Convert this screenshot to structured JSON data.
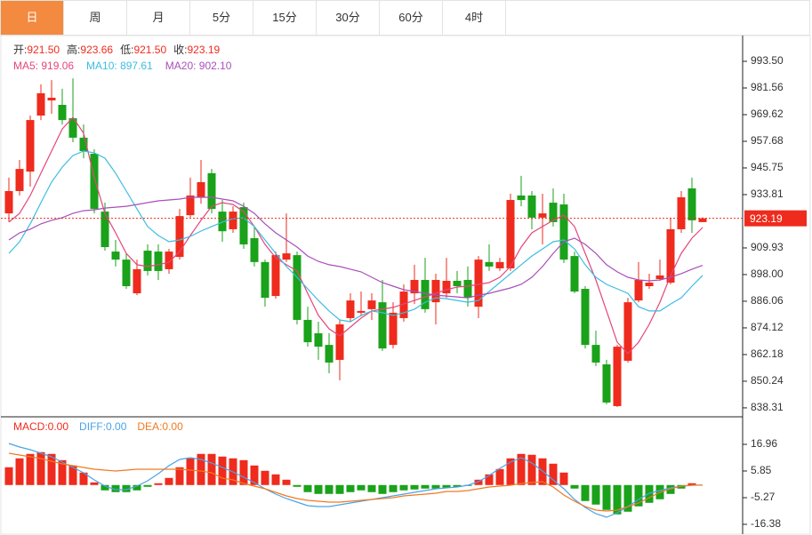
{
  "tabs": [
    "日",
    "周",
    "月",
    "5分",
    "15分",
    "30分",
    "60分",
    "4时"
  ],
  "active_tab": 0,
  "chart_data": [
    {
      "type": "candlestick",
      "categories": [
        null,
        null,
        null,
        null,
        null,
        null,
        null,
        null,
        null,
        null,
        null,
        null,
        null,
        null,
        null,
        null,
        null,
        null,
        null,
        null,
        null,
        null,
        null,
        null,
        null,
        null,
        null,
        null,
        null,
        null,
        null,
        null,
        null,
        null,
        null,
        null,
        null,
        null,
        null,
        null,
        null,
        null,
        null,
        null,
        null,
        null,
        null,
        null,
        null,
        null,
        null,
        null,
        null,
        null,
        null,
        null,
        null,
        null,
        null,
        null,
        null,
        null,
        null,
        null,
        null,
        null
      ],
      "info": [
        {
          "label": "开:",
          "text": "921.50"
        },
        {
          "label": "高:",
          "text": "923.66"
        },
        {
          "label": "低:",
          "text": "921.50"
        },
        {
          "label": "收:",
          "text": "923.19"
        }
      ],
      "up_color": "#ee2b1d",
      "down_color": "#1aa21a",
      "open": [
        925.4,
        935.4,
        944.1,
        969.2,
        976.0,
        974.0,
        968.0,
        959.3,
        952.1,
        926.2,
        908.3,
        904.7,
        889.6,
        908.7,
        908.3,
        900.4,
        905.9,
        924.6,
        932.6,
        943.4,
        926.2,
        918.3,
        928.2,
        914.3,
        903.6,
        888.4,
        904.7,
        906.7,
        877.7,
        871.7,
        866.5,
        859.8,
        878.5,
        880.9,
        882.5,
        885.6,
        866.5,
        878.5,
        889.6,
        895.6,
        885.6,
        889.6,
        895.2,
        895.6,
        883.6,
        903.6,
        900.8,
        900.8,
        933.4,
        933.4,
        923.5,
        930.2,
        929.4,
        906.3,
        891.6,
        866.5,
        857.8,
        839.1,
        859.4,
        886.4,
        892.8,
        896.0,
        894.4,
        918.3,
        936.6,
        921.5
      ],
      "high": [
        941.4,
        949.3,
        969.2,
        983.2,
        985.1,
        981.2,
        985.9,
        965.2,
        954.1,
        930.2,
        913.5,
        907.5,
        904.7,
        911.5,
        911.5,
        909.5,
        927.4,
        941.4,
        949.3,
        945.3,
        931.4,
        928.6,
        930.2,
        919.5,
        904.7,
        908.3,
        925.4,
        908.3,
        883.6,
        876.9,
        871.7,
        877.7,
        889.6,
        890.4,
        889.6,
        895.6,
        885.6,
        893.6,
        902.4,
        905.5,
        898.4,
        905.5,
        899.6,
        901.6,
        906.3,
        911.5,
        905.5,
        934.2,
        942.2,
        935.4,
        934.2,
        936.6,
        934.2,
        908.3,
        892.8,
        872.9,
        859.8,
        866.5,
        887.6,
        903.6,
        898.4,
        904.7,
        923.5,
        935.4,
        941.4,
        923.66
      ],
      "low": [
        921.5,
        933.4,
        937.4,
        967.2,
        970.0,
        965.2,
        957.3,
        950.1,
        925.4,
        908.7,
        901.6,
        891.6,
        888.8,
        897.6,
        895.6,
        898.4,
        904.7,
        923.5,
        929.7,
        925.4,
        912.7,
        916.7,
        909.5,
        901.6,
        883.6,
        887.2,
        903.6,
        875.7,
        865.7,
        859.8,
        853.8,
        850.6,
        876.9,
        879.3,
        877.7,
        863.8,
        864.9,
        876.9,
        884.8,
        880.9,
        875.7,
        887.6,
        889.6,
        883.6,
        878.5,
        899.6,
        899.6,
        899.6,
        928.6,
        918.3,
        911.5,
        919.5,
        903.2,
        889.6,
        864.9,
        857.0,
        839.9,
        838.7,
        858.6,
        885.6,
        891.6,
        895.2,
        893.6,
        916.7,
        916.7,
        921.5
      ],
      "close": [
        935.4,
        945.3,
        967.2,
        979.2,
        977.2,
        967.2,
        959.3,
        953.3,
        927.4,
        910.3,
        904.7,
        892.8,
        900.4,
        899.6,
        899.6,
        908.3,
        924.2,
        933.4,
        939.4,
        927.4,
        917.4,
        926.2,
        911.5,
        903.6,
        887.6,
        906.7,
        907.5,
        877.7,
        867.7,
        865.7,
        858.6,
        875.7,
        886.4,
        881.7,
        886.4,
        864.9,
        880.9,
        890.4,
        895.6,
        882.5,
        895.6,
        895.2,
        892.8,
        887.6,
        904.7,
        901.6,
        903.6,
        931.4,
        931.4,
        923.5,
        925.4,
        921.5,
        904.7,
        890.4,
        866.5,
        858.6,
        840.7,
        865.7,
        885.6,
        895.6,
        894.4,
        897.6,
        918.3,
        932.6,
        922.3,
        923.19
      ],
      "series": [
        {
          "name": "MA5: 919.06",
          "color": "#e5457a",
          "values": [
            921.5,
            925.4,
            933.4,
            943.4,
            953.3,
            963.2,
            968.4,
            961.3,
            941.4,
            925.4,
            916.7,
            907.5,
            902.4,
            901.6,
            902.4,
            903.6,
            908.3,
            915.5,
            922.3,
            928.6,
            930.2,
            929.4,
            926.2,
            919.5,
            911.5,
            905.5,
            902.4,
            899.6,
            889.6,
            879.7,
            873.7,
            870.5,
            874.5,
            878.5,
            881.7,
            882.5,
            883.3,
            884.8,
            886.4,
            888.0,
            889.6,
            891.2,
            892.4,
            892.8,
            893.6,
            894.4,
            896.8,
            901.6,
            910.3,
            916.7,
            919.5,
            922.3,
            924.6,
            919.5,
            907.5,
            895.6,
            881.7,
            867.7,
            862.6,
            867.7,
            875.7,
            885.6,
            897.6,
            907.5,
            914.3,
            919.06
          ]
        },
        {
          "name": "MA10: 897.61",
          "color": "#3cbde0",
          "values": [
            907.5,
            912.7,
            920.7,
            930.2,
            939.4,
            946.1,
            951.3,
            953.3,
            952.5,
            950.1,
            943.4,
            935.4,
            927.4,
            919.5,
            915.5,
            912.7,
            913.5,
            915.1,
            917.5,
            919.5,
            921.5,
            923.0,
            923.4,
            919.5,
            913.5,
            907.5,
            901.6,
            896.8,
            891.6,
            886.4,
            881.7,
            877.7,
            876.9,
            879.7,
            881.7,
            880.9,
            879.7,
            880.9,
            882.5,
            885.6,
            887.6,
            887.2,
            886.4,
            885.6,
            886.4,
            890.4,
            894.4,
            898.4,
            902.4,
            906.3,
            909.5,
            912.7,
            913.5,
            909.5,
            902.4,
            896.8,
            893.6,
            891.6,
            889.6,
            883.6,
            881.7,
            881.7,
            884.8,
            887.6,
            892.8,
            897.61
          ]
        },
        {
          "name": "MA20: 902.10",
          "color": "#a94fba",
          "values": [
            913.5,
            916.7,
            918.3,
            920.7,
            922.3,
            923.5,
            925.4,
            926.6,
            927.0,
            927.8,
            928.2,
            928.6,
            929.4,
            930.2,
            931.0,
            931.4,
            931.8,
            932.6,
            932.6,
            932.6,
            931.8,
            931.0,
            928.6,
            925.4,
            920.7,
            916.7,
            913.5,
            910.3,
            906.3,
            903.9,
            902.4,
            901.6,
            900.4,
            899.2,
            896.8,
            894.4,
            892.8,
            891.2,
            890.4,
            889.6,
            888.8,
            888.4,
            888.0,
            887.6,
            888.8,
            889.6,
            890.8,
            892.0,
            893.6,
            896.8,
            901.6,
            907.5,
            912.7,
            914.3,
            911.5,
            907.5,
            902.4,
            899.2,
            896.8,
            895.6,
            895.2,
            895.6,
            896.8,
            898.4,
            900.4,
            902.1
          ]
        }
      ],
      "ylim": [
        834.7,
        1005.04
      ],
      "yticks": [
        {
          "value": 993.5,
          "label": "993.50"
        },
        981.56,
        969.62,
        957.68,
        945.75,
        933.81,
        909.93,
        {
          "value": 898,
          "label": "898.00"
        },
        886.06,
        874.12,
        862.18,
        850.24,
        838.31
      ],
      "last_price": {
        "value": 923.19,
        "label": "923.19"
      }
    },
    {
      "type": "macd",
      "histogram": {
        "name": "MACD:0.00",
        "color": "#ee2b1d",
        "down_color": "#1aa21a",
        "values": [
          7.41,
          11.12,
          12.97,
          13.71,
          12.97,
          10.37,
          8.15,
          5.19,
          1.11,
          -2.22,
          -2.96,
          -2.96,
          -2.22,
          -0.74,
          0.74,
          2.96,
          7.41,
          11.12,
          12.97,
          12.97,
          11.86,
          11.12,
          10.37,
          8.15,
          5.93,
          4.45,
          2.22,
          -0.74,
          -2.96,
          -3.71,
          -3.71,
          -3.71,
          -2.96,
          -2.22,
          -2.96,
          -3.71,
          -2.96,
          -2.22,
          -1.85,
          -1.48,
          -1.48,
          -1.11,
          -0.74,
          -0.37,
          2.22,
          4.45,
          6.67,
          11.12,
          12.97,
          12.6,
          11.12,
          8.89,
          5.19,
          -1.48,
          -6.67,
          -8.15,
          -10.37,
          -12.23,
          -11.12,
          -8.89,
          -7.41,
          -5.93,
          -3.71,
          -1.48,
          0.74,
          0
        ]
      },
      "series": [
        {
          "name": "DIFF:0.00",
          "color": "#4aa3e8",
          "values": [
            17.34,
            15.86,
            14.75,
            13.26,
            11.78,
            9.56,
            7.34,
            5.11,
            2.15,
            -0.44,
            -1.93,
            -1.93,
            -0.44,
            1.78,
            4.74,
            8.08,
            10.67,
            11.41,
            10.67,
            9.19,
            7.34,
            5.48,
            3.26,
            1.04,
            -1.56,
            -3.78,
            -5.63,
            -7.11,
            -8.59,
            -8.97,
            -8.97,
            -8.23,
            -7.48,
            -6.74,
            -6.0,
            -5.26,
            -4.52,
            -3.78,
            -3.04,
            -2.3,
            -1.56,
            -1.19,
            -0.82,
            -0.07,
            1.41,
            4.0,
            6.97,
            9.56,
            11.41,
            9.19,
            5.85,
            2.15,
            -1.56,
            -6.0,
            -9.34,
            -11.93,
            -13.41,
            -11.56,
            -8.97,
            -6.0,
            -3.41,
            -2.3,
            -1.19,
            -0.44,
            -0.07,
            0
          ]
        },
        {
          "name": "DEA:0.00",
          "color": "#f07a20",
          "values": [
            13.26,
            12.52,
            11.78,
            11.04,
            9.93,
            8.82,
            8.08,
            7.34,
            6.6,
            6.22,
            5.85,
            6.22,
            6.6,
            6.6,
            6.6,
            6.6,
            6.6,
            6.22,
            5.85,
            5.11,
            2.89,
            2.15,
            0.67,
            -0.44,
            -1.56,
            -3.04,
            -4.52,
            -5.63,
            -6.37,
            -6.74,
            -7.11,
            -7.11,
            -6.74,
            -6.37,
            -6.0,
            -5.63,
            -5.26,
            -4.52,
            -4.15,
            -3.78,
            -3.41,
            -2.67,
            -2.67,
            -2.3,
            -1.56,
            -0.82,
            -0.44,
            -0.07,
            0.67,
            1.04,
            1.41,
            -0.82,
            -4.15,
            -6.74,
            -8.97,
            -10.45,
            -10.82,
            -10.45,
            -8.97,
            -7.48,
            -5.26,
            -3.04,
            -1.56,
            -0.44,
            -0.07,
            0
          ]
        }
      ],
      "ylim": [
        -20.09,
        28.07
      ],
      "yticks": [
        16.96,
        5.85,
        -5.27,
        -16.38
      ]
    }
  ]
}
